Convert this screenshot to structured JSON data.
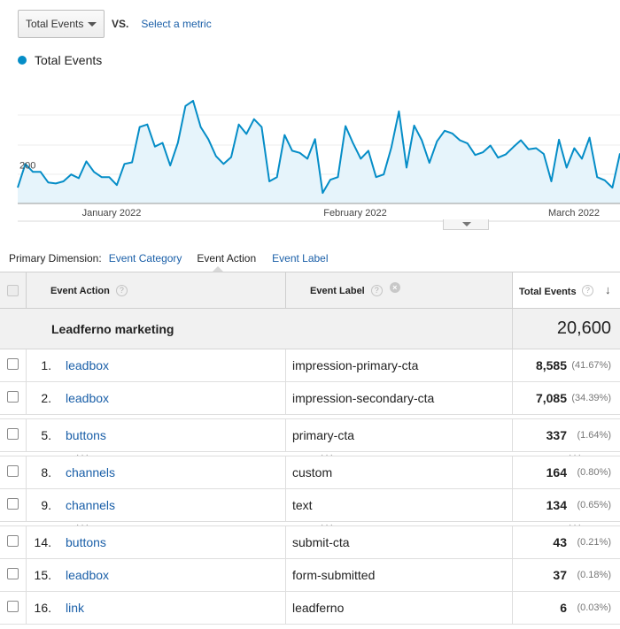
{
  "metric_bar": {
    "metric": "Total Events",
    "vs": "VS.",
    "select_metric": "Select a metric"
  },
  "legend": {
    "label": "Total Events",
    "color": "#058dc7"
  },
  "chart_data": {
    "type": "area",
    "series": [
      {
        "name": "Total Events",
        "color": "#058dc7",
        "values": [
          170,
          215,
          200,
          200,
          180,
          178,
          182,
          195,
          188,
          220,
          200,
          190,
          190,
          175,
          215,
          218,
          285,
          290,
          248,
          255,
          212,
          255,
          325,
          335,
          285,
          262,
          230,
          215,
          228,
          290,
          272,
          300,
          285,
          182,
          190,
          270,
          240,
          236,
          225,
          262,
          160,
          185,
          190,
          287,
          254,
          225,
          240,
          190,
          195,
          246,
          315,
          208,
          288,
          260,
          217,
          258,
          278,
          273,
          260,
          254,
          232,
          237,
          250,
          227,
          233,
          247,
          260,
          243,
          245,
          234,
          182,
          261,
          208,
          245,
          225,
          265,
          190,
          184,
          170,
          235
        ]
      }
    ],
    "x_labels": [
      "January 2022",
      "February 2022",
      "March 2022"
    ],
    "y_tick": 200,
    "ylim": [
      140,
      365
    ],
    "grid": true
  },
  "dimension_bar": {
    "label": "Primary Dimension:",
    "options": [
      "Event Category",
      "Event Action",
      "Event Label"
    ],
    "active": "Event Action"
  },
  "table": {
    "headers": {
      "action": "Event Action",
      "label": "Event Label",
      "total": "Total Events",
      "help": "?",
      "remove": "×",
      "sort": "↓"
    },
    "summary": {
      "name": "Leadferno marketing",
      "total": "20,600"
    },
    "rows": [
      {
        "index": "1.",
        "action": "leadbox",
        "label": "impression-primary-cta",
        "total": "8,585",
        "pct": "(41.67%)"
      },
      {
        "index": "2.",
        "action": "leadbox",
        "label": "impression-secondary-cta",
        "total": "7,085",
        "pct": "(34.39%)"
      },
      {
        "index": "5.",
        "action": "buttons",
        "label": "primary-cta",
        "total": "337",
        "pct": "(1.64%)"
      },
      {
        "index": "8.",
        "action": "channels",
        "label": "custom",
        "total": "164",
        "pct": "(0.80%)"
      },
      {
        "index": "9.",
        "action": "channels",
        "label": "text",
        "total": "134",
        "pct": "(0.65%)"
      },
      {
        "index": "14.",
        "action": "buttons",
        "label": "submit-cta",
        "total": "43",
        "pct": "(0.21%)"
      },
      {
        "index": "15.",
        "action": "leadbox",
        "label": "form-submitted",
        "total": "37",
        "pct": "(0.18%)"
      },
      {
        "index": "16.",
        "action": "link",
        "label": "leadferno",
        "total": "6",
        "pct": "(0.03%)"
      }
    ],
    "ellipsis": "···"
  }
}
